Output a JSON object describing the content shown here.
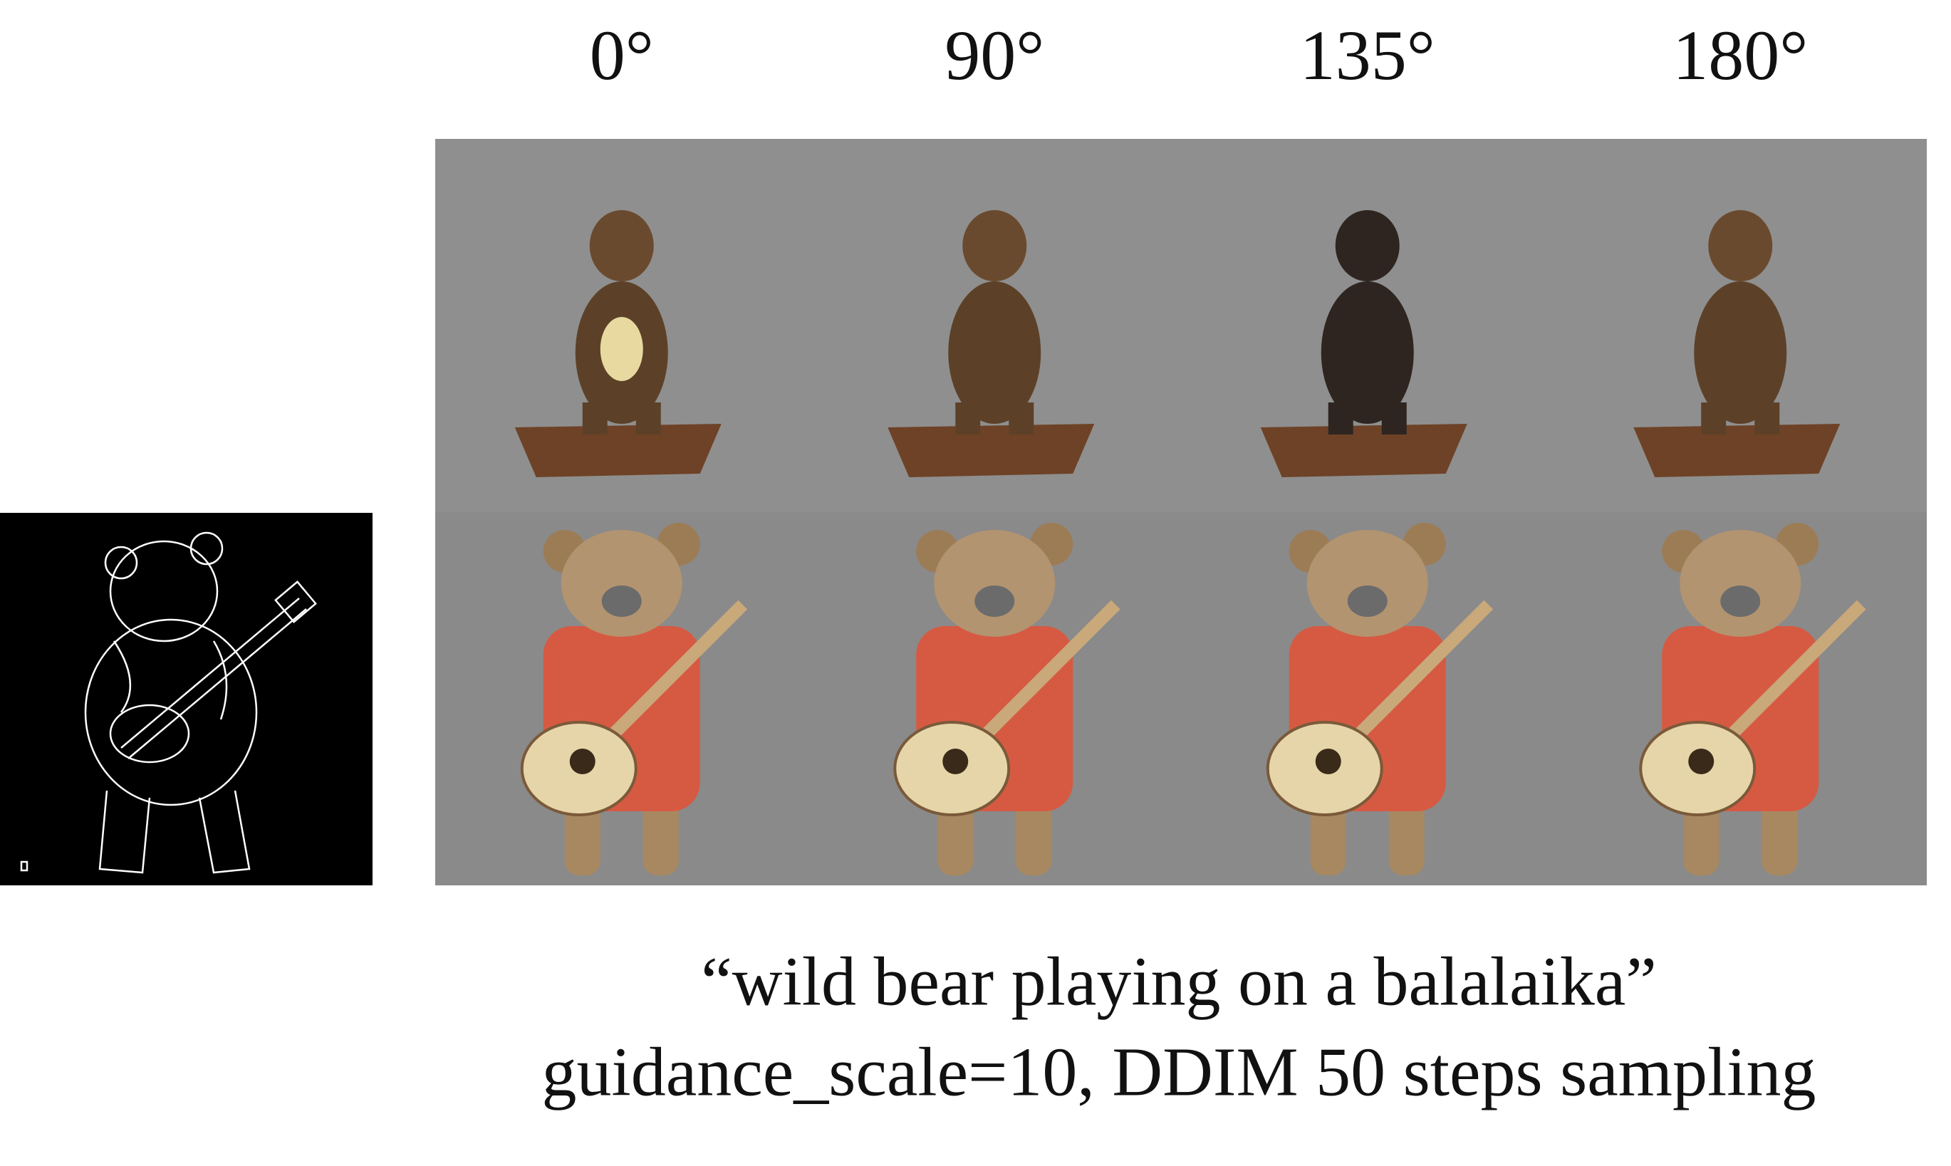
{
  "column_headers": [
    "0°",
    "90°",
    "135°",
    "180°"
  ],
  "caption": {
    "prompt": "“wild bear playing on a balalaika”",
    "settings": "guidance_scale=10, DDIM 50 steps sampling"
  }
}
